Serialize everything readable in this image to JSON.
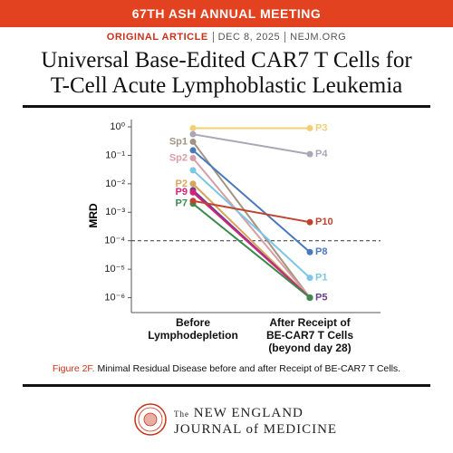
{
  "header": {
    "banner": "67TH ASH ANNUAL MEETING",
    "section": "ORIGINAL ARTICLE",
    "date": "DEC 8, 2025",
    "site": "NEJM.ORG",
    "title_lines": [
      "Universal Base-Edited CAR7 T Cells for",
      "T-Cell Acute Lymphoblastic Leukemia"
    ]
  },
  "chart_data": {
    "type": "line",
    "y_label": "MRD",
    "log_y": true,
    "categories": [
      "Before\nLymphodepletion",
      "After Receipt of\nBE-CAR7 T Cells\n(beyond day 28)"
    ],
    "ylim": [
      3e-07,
      1.8
    ],
    "yticks": [
      {
        "value": 1,
        "label": "10⁰"
      },
      {
        "value": 0.1,
        "label": "10⁻¹"
      },
      {
        "value": 0.01,
        "label": "10⁻²"
      },
      {
        "value": 0.001,
        "label": "10⁻³"
      },
      {
        "value": 0.0001,
        "label": "10⁻⁴"
      },
      {
        "value": 1e-05,
        "label": "10⁻⁵"
      },
      {
        "value": 1e-06,
        "label": "10⁻⁶"
      }
    ],
    "threshold": 0.0001,
    "series": [
      {
        "name": "P3",
        "color": "#f2cf73",
        "values": [
          0.9,
          0.9
        ]
      },
      {
        "name": "P4",
        "color": "#a9a7b8",
        "values": [
          0.55,
          0.11
        ]
      },
      {
        "name": "Sp1",
        "color": "#a39482",
        "values": [
          0.3,
          1e-06
        ]
      },
      {
        "name": "Sp2",
        "color": "#d79ea6",
        "values": [
          0.08,
          1e-06
        ]
      },
      {
        "name": "P8",
        "color": "#4a78bd",
        "values": [
          0.15,
          4e-05
        ]
      },
      {
        "name": "P1",
        "color": "#7cc6e6",
        "values": [
          0.03,
          5e-06
        ]
      },
      {
        "name": "P2",
        "color": "#d9a45e",
        "values": [
          0.01,
          1e-06
        ]
      },
      {
        "name": "P5",
        "color": "#6a3f8f",
        "values": [
          0.006,
          1e-06
        ]
      },
      {
        "name": "P9",
        "color": "#d4247a",
        "values": [
          0.005,
          1e-06
        ]
      },
      {
        "name": "P7",
        "color": "#3b8a4e",
        "values": [
          0.002,
          1e-06
        ]
      },
      {
        "name": "P10",
        "color": "#c0432f",
        "values": [
          0.0025,
          0.00045
        ]
      }
    ],
    "caption_label": "Figure 2F.",
    "caption": "Minimal Residual Disease before and after Receipt of BE-CAR7 T Cells."
  },
  "footer": {
    "small": "The",
    "line1": "NEW ENGLAND",
    "line2": "JOURNAL of MEDICINE"
  }
}
